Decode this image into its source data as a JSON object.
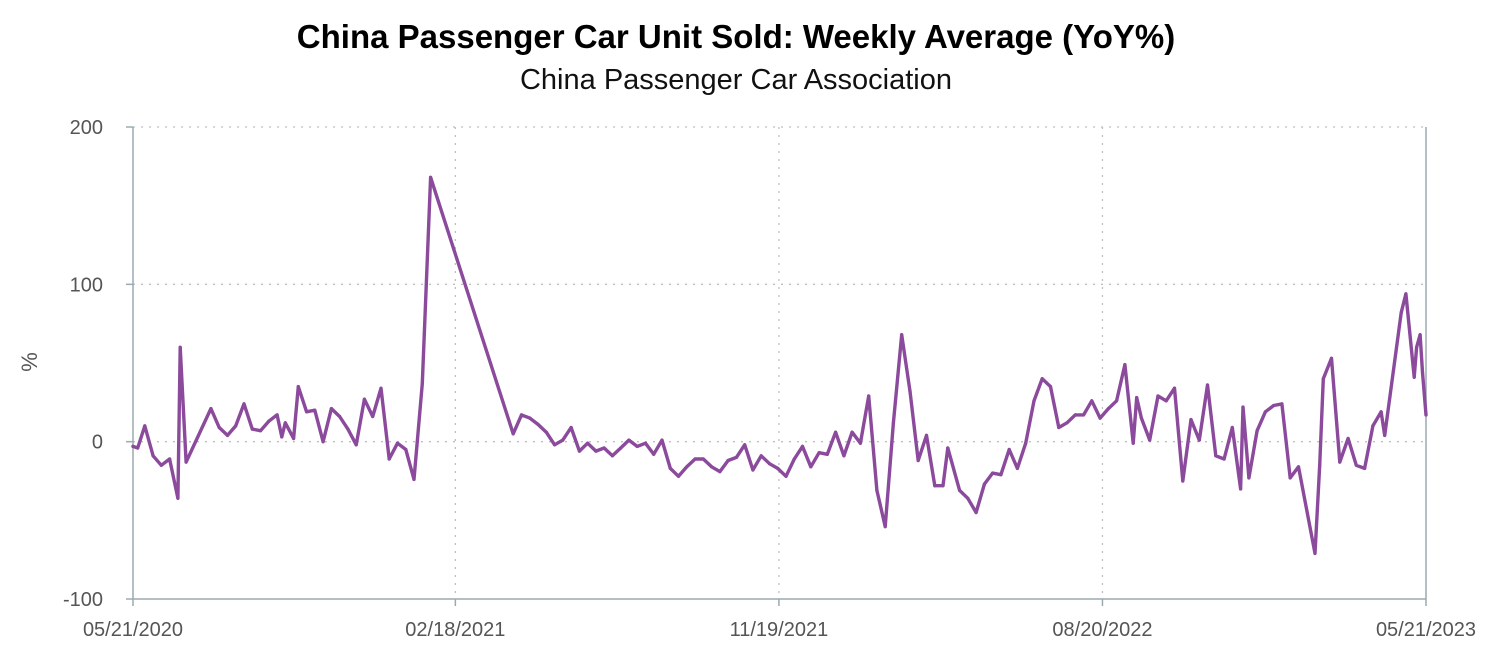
{
  "chart_data": {
    "type": "line",
    "title": "China Passenger Car Unit Sold: Weekly Average (YoY%)",
    "subtitle": "China Passenger Car Association",
    "xlabel": "",
    "ylabel": "%",
    "ylim": [
      -100,
      200
    ],
    "xlim": [
      "2020-05-21",
      "2023-05-21"
    ],
    "grid": true,
    "y_ticks": [
      {
        "value": 200,
        "label": "200"
      },
      {
        "value": 100,
        "label": "100"
      },
      {
        "value": 0,
        "label": "0"
      },
      {
        "value": -100,
        "label": "-100"
      }
    ],
    "x_ticks": [
      {
        "date": "2020-05-21",
        "label": "05/21/2020"
      },
      {
        "date": "2021-02-18",
        "label": "02/18/2021"
      },
      {
        "date": "2021-11-19",
        "label": "11/19/2021"
      },
      {
        "date": "2022-08-20",
        "label": "08/20/2022"
      },
      {
        "date": "2023-05-21",
        "label": "05/21/2023"
      }
    ],
    "colors": {
      "line": "#8b4a9c",
      "grid": "#bfbfbf",
      "frame": "#9aaab0"
    },
    "series": [
      {
        "values": [
          [
            "2020-05-21",
            -3
          ],
          [
            "2020-05-25",
            -4
          ],
          [
            "2020-05-31",
            10
          ],
          [
            "2020-06-07",
            -9
          ],
          [
            "2020-06-14",
            -15
          ],
          [
            "2020-06-21",
            -11
          ],
          [
            "2020-06-28",
            -36
          ],
          [
            "2020-06-30",
            60
          ],
          [
            "2020-07-05",
            -13
          ],
          [
            "2020-07-26",
            21
          ],
          [
            "2020-08-02",
            9
          ],
          [
            "2020-08-09",
            4
          ],
          [
            "2020-08-16",
            10
          ],
          [
            "2020-08-23",
            24
          ],
          [
            "2020-08-30",
            8
          ],
          [
            "2020-09-06",
            7
          ],
          [
            "2020-09-13",
            13
          ],
          [
            "2020-09-20",
            17
          ],
          [
            "2020-09-24",
            3
          ],
          [
            "2020-09-27",
            12
          ],
          [
            "2020-10-04",
            2
          ],
          [
            "2020-10-08",
            35
          ],
          [
            "2020-10-15",
            19
          ],
          [
            "2020-10-22",
            20
          ],
          [
            "2020-10-29",
            0
          ],
          [
            "2020-11-05",
            21
          ],
          [
            "2020-11-12",
            16
          ],
          [
            "2020-11-19",
            8
          ],
          [
            "2020-11-26",
            -2
          ],
          [
            "2020-12-03",
            27
          ],
          [
            "2020-12-10",
            16
          ],
          [
            "2020-12-17",
            34
          ],
          [
            "2020-12-24",
            -11
          ],
          [
            "2020-12-31",
            -1
          ],
          [
            "2021-01-07",
            -5
          ],
          [
            "2021-01-14",
            -24
          ],
          [
            "2021-01-21",
            37
          ],
          [
            "2021-01-28",
            168
          ],
          [
            "2021-04-08",
            5
          ],
          [
            "2021-04-15",
            17
          ],
          [
            "2021-04-22",
            15
          ],
          [
            "2021-04-29",
            11
          ],
          [
            "2021-05-06",
            6
          ],
          [
            "2021-05-13",
            -2
          ],
          [
            "2021-05-20",
            1
          ],
          [
            "2021-05-27",
            9
          ],
          [
            "2021-06-03",
            -6
          ],
          [
            "2021-06-10",
            -1
          ],
          [
            "2021-06-17",
            -6
          ],
          [
            "2021-06-24",
            -4
          ],
          [
            "2021-07-01",
            -9
          ],
          [
            "2021-07-08",
            -4
          ],
          [
            "2021-07-15",
            1
          ],
          [
            "2021-07-22",
            -3
          ],
          [
            "2021-07-29",
            -1
          ],
          [
            "2021-08-05",
            -8
          ],
          [
            "2021-08-12",
            1
          ],
          [
            "2021-08-19",
            -17
          ],
          [
            "2021-08-26",
            -22
          ],
          [
            "2021-09-02",
            -16
          ],
          [
            "2021-09-09",
            -11
          ],
          [
            "2021-09-16",
            -11
          ],
          [
            "2021-09-23",
            -16
          ],
          [
            "2021-09-30",
            -19
          ],
          [
            "2021-10-07",
            -12
          ],
          [
            "2021-10-14",
            -10
          ],
          [
            "2021-10-21",
            -2
          ],
          [
            "2021-10-28",
            -18
          ],
          [
            "2021-11-04",
            -9
          ],
          [
            "2021-11-11",
            -14
          ],
          [
            "2021-11-18",
            -17
          ],
          [
            "2021-11-25",
            -22
          ],
          [
            "2021-12-02",
            -11
          ],
          [
            "2021-12-09",
            -3
          ],
          [
            "2021-12-16",
            -16
          ],
          [
            "2021-12-23",
            -7
          ],
          [
            "2021-12-30",
            -8
          ],
          [
            "2022-01-06",
            6
          ],
          [
            "2022-01-13",
            -9
          ],
          [
            "2022-01-20",
            6
          ],
          [
            "2022-01-27",
            -1
          ],
          [
            "2022-02-03",
            29
          ],
          [
            "2022-02-10",
            -31
          ],
          [
            "2022-02-17",
            -54
          ],
          [
            "2022-02-24",
            12
          ],
          [
            "2022-03-03",
            68
          ],
          [
            "2022-03-10",
            32
          ],
          [
            "2022-03-17",
            -12
          ],
          [
            "2022-03-24",
            4
          ],
          [
            "2022-03-31",
            -28
          ],
          [
            "2022-04-07",
            -28
          ],
          [
            "2022-04-11",
            -4
          ],
          [
            "2022-04-21",
            -31
          ],
          [
            "2022-04-28",
            -36
          ],
          [
            "2022-05-05",
            -45
          ],
          [
            "2022-05-12",
            -27
          ],
          [
            "2022-05-19",
            -20
          ],
          [
            "2022-05-26",
            -21
          ],
          [
            "2022-06-02",
            -5
          ],
          [
            "2022-06-09",
            -17
          ],
          [
            "2022-06-16",
            -1
          ],
          [
            "2022-06-23",
            26
          ],
          [
            "2022-06-30",
            40
          ],
          [
            "2022-07-07",
            35
          ],
          [
            "2022-07-14",
            9
          ],
          [
            "2022-07-21",
            12
          ],
          [
            "2022-07-28",
            17
          ],
          [
            "2022-08-04",
            17
          ],
          [
            "2022-08-11",
            26
          ],
          [
            "2022-08-18",
            15
          ],
          [
            "2022-08-25",
            21
          ],
          [
            "2022-09-01",
            26
          ],
          [
            "2022-09-08",
            49
          ],
          [
            "2022-09-15",
            -1
          ],
          [
            "2022-09-18",
            28
          ],
          [
            "2022-09-22",
            15
          ],
          [
            "2022-09-29",
            1
          ],
          [
            "2022-10-06",
            29
          ],
          [
            "2022-10-13",
            26
          ],
          [
            "2022-10-20",
            34
          ],
          [
            "2022-10-27",
            -25
          ],
          [
            "2022-11-03",
            14
          ],
          [
            "2022-11-10",
            1
          ],
          [
            "2022-11-17",
            36
          ],
          [
            "2022-11-24",
            -9
          ],
          [
            "2022-12-01",
            -11
          ],
          [
            "2022-12-08",
            9
          ],
          [
            "2022-12-15",
            -30
          ],
          [
            "2022-12-17",
            22
          ],
          [
            "2022-12-22",
            -23
          ],
          [
            "2022-12-29",
            7
          ],
          [
            "2023-01-05",
            19
          ],
          [
            "2023-01-12",
            23
          ],
          [
            "2023-01-19",
            24
          ],
          [
            "2023-01-26",
            -23
          ],
          [
            "2023-02-02",
            -16
          ],
          [
            "2023-02-16",
            -71
          ],
          [
            "2023-02-20",
            -15
          ],
          [
            "2023-02-23",
            40
          ],
          [
            "2023-03-02",
            53
          ],
          [
            "2023-03-09",
            -13
          ],
          [
            "2023-03-16",
            2
          ],
          [
            "2023-03-23",
            -15
          ],
          [
            "2023-03-30",
            -17
          ],
          [
            "2023-04-06",
            10
          ],
          [
            "2023-04-13",
            19
          ],
          [
            "2023-04-16",
            4
          ],
          [
            "2023-04-30",
            82
          ],
          [
            "2023-05-04",
            94
          ],
          [
            "2023-05-11",
            41
          ],
          [
            "2023-05-13",
            60
          ],
          [
            "2023-05-16",
            68
          ],
          [
            "2023-05-18",
            44
          ],
          [
            "2023-05-21",
            17
          ]
        ]
      }
    ]
  }
}
